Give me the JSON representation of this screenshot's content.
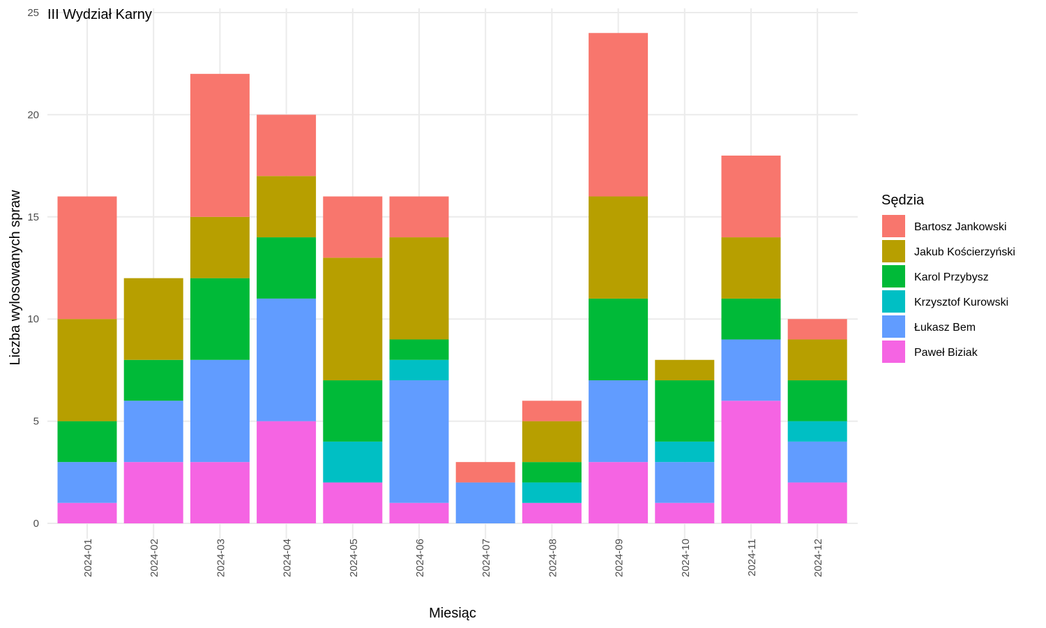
{
  "chart_data": {
    "type": "bar",
    "stacked": true,
    "title": "III Wydział Karny",
    "xlabel": "Miesiąc",
    "ylabel": "Liczba wylosowanych spraw",
    "ylim": [
      0,
      25
    ],
    "yticks": [
      0,
      5,
      10,
      15,
      20,
      25
    ],
    "grid": true,
    "legend": {
      "title": "Sędzia",
      "position": "right"
    },
    "categories": [
      "2024-01",
      "2024-02",
      "2024-03",
      "2024-04",
      "2024-05",
      "2024-06",
      "2024-07",
      "2024-08",
      "2024-09",
      "2024-10",
      "2024-11",
      "2024-12"
    ],
    "series": [
      {
        "name": "Bartosz Jankowski",
        "color": "#F8766D",
        "values": [
          6,
          0,
          7,
          3,
          3,
          2,
          1,
          1,
          8,
          0,
          4,
          1
        ]
      },
      {
        "name": "Jakub Kościerzyński",
        "color": "#B79F00",
        "values": [
          5,
          4,
          3,
          3,
          6,
          5,
          0,
          2,
          5,
          1,
          3,
          2
        ]
      },
      {
        "name": "Karol Przybysz",
        "color": "#00BA38",
        "values": [
          2,
          2,
          4,
          3,
          3,
          1,
          0,
          1,
          4,
          3,
          2,
          2
        ]
      },
      {
        "name": "Krzysztof Kurowski",
        "color": "#00BFC4",
        "values": [
          0,
          0,
          0,
          0,
          2,
          1,
          0,
          1,
          0,
          1,
          0,
          1
        ]
      },
      {
        "name": "Łukasz Bem",
        "color": "#619CFF",
        "values": [
          2,
          3,
          5,
          6,
          0,
          6,
          2,
          0,
          4,
          2,
          3,
          2
        ]
      },
      {
        "name": "Paweł Biziak",
        "color": "#F564E3",
        "values": [
          1,
          3,
          3,
          5,
          2,
          1,
          0,
          1,
          3,
          1,
          6,
          2
        ]
      }
    ]
  }
}
